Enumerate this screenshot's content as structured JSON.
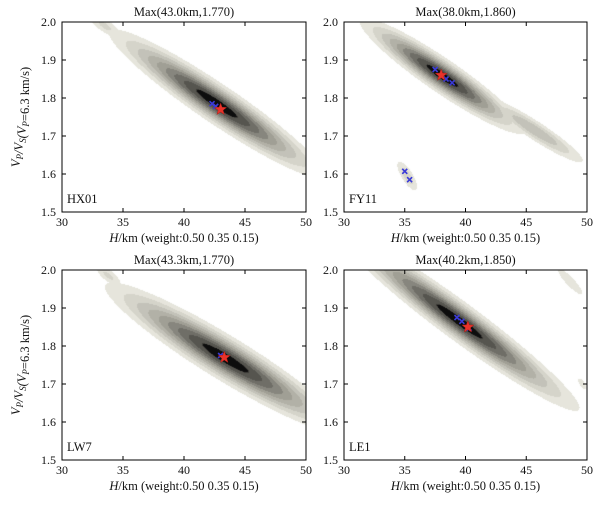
{
  "figure": {
    "ylabel_main": "V",
    "ylabel_sub_p": "P",
    "ylabel_sep": "/V",
    "ylabel_sub_s": "S",
    "ylabel_paren_open": "(V",
    "ylabel_sub_p2": "P",
    "ylabel_tail": "=6.3 km/s)",
    "xlabel_italic": "H",
    "xlabel_rest": "/km (weight:0.50 0.35 0.15)"
  },
  "colors": {
    "contour_outer": "#e6e5dc",
    "contour_mid": "#a09f95",
    "contour_inner": "#3d3c38",
    "peak": "#0d0d0d",
    "star": "#e8332a",
    "blue_trace": "#3a3ad8"
  },
  "chart_data": [
    {
      "type": "contour",
      "station": "HX01",
      "title": "Max(43.0km,1.770)",
      "max_H_km": 43.0,
      "max_ratio": 1.77,
      "xlim": [
        30,
        50
      ],
      "ylim": [
        1.5,
        2.0
      ],
      "xticks": [
        30,
        35,
        40,
        45,
        50
      ],
      "yticks": [
        1.5,
        1.6,
        1.7,
        1.8,
        1.9,
        2.0
      ],
      "blobs": [
        {
          "cx": 42.7,
          "cy": 1.785,
          "sx": 4.3,
          "sy": 0.03,
          "slope": -0.021,
          "amp": 1.0
        },
        {
          "cx": 33.5,
          "cy": 1.99,
          "sx": 1.0,
          "sy": 0.015,
          "slope": -0.018,
          "amp": 0.25
        }
      ],
      "blue_points": [
        [
          42.3,
          1.785
        ],
        [
          42.6,
          1.778
        ]
      ]
    },
    {
      "type": "contour",
      "station": "FY11",
      "title": "Max(38.0km,1.860)",
      "max_H_km": 38.0,
      "max_ratio": 1.86,
      "xlim": [
        30,
        50
      ],
      "ylim": [
        1.5,
        2.0
      ],
      "xticks": [
        30,
        35,
        40,
        45,
        50
      ],
      "yticks": [
        1.5,
        1.6,
        1.7,
        1.8,
        1.9,
        2.0
      ],
      "blobs": [
        {
          "cx": 38.1,
          "cy": 1.858,
          "sx": 3.3,
          "sy": 0.026,
          "slope": -0.021,
          "amp": 1.0
        },
        {
          "cx": 45.7,
          "cy": 1.715,
          "sx": 2.5,
          "sy": 0.018,
          "slope": -0.02,
          "amp": 0.42
        },
        {
          "cx": 35.2,
          "cy": 1.595,
          "sx": 0.6,
          "sy": 0.018,
          "slope": -0.035,
          "amp": 0.3
        },
        {
          "cx": 32.5,
          "cy": 1.99,
          "sx": 0.7,
          "sy": 0.012,
          "slope": -0.02,
          "amp": 0.2
        }
      ],
      "blue_points": [
        [
          37.5,
          1.875
        ],
        [
          38.4,
          1.85
        ],
        [
          38.9,
          1.84
        ],
        [
          35.0,
          1.607
        ],
        [
          35.4,
          1.585
        ]
      ]
    },
    {
      "type": "contour",
      "station": "LW7",
      "title": "Max(43.3km,1.770)",
      "max_H_km": 43.3,
      "max_ratio": 1.77,
      "xlim": [
        30,
        50
      ],
      "ylim": [
        1.5,
        2.0
      ],
      "xticks": [
        30,
        35,
        40,
        45,
        50
      ],
      "yticks": [
        1.5,
        1.6,
        1.7,
        1.8,
        1.9,
        2.0
      ],
      "blobs": [
        {
          "cx": 43.4,
          "cy": 1.768,
          "sx": 4.8,
          "sy": 0.033,
          "slope": -0.019,
          "amp": 1.0
        },
        {
          "cx": 33.8,
          "cy": 1.985,
          "sx": 0.8,
          "sy": 0.014,
          "slope": -0.02,
          "amp": 0.25
        }
      ],
      "blue_points": [
        [
          43.0,
          1.775
        ]
      ]
    },
    {
      "type": "contour",
      "station": "LE1",
      "title": "Max(40.2km,1.850)",
      "max_H_km": 40.2,
      "max_ratio": 1.85,
      "xlim": [
        30,
        50
      ],
      "ylim": [
        1.5,
        2.0
      ],
      "xticks": [
        30,
        35,
        40,
        45,
        50
      ],
      "yticks": [
        1.5,
        1.6,
        1.7,
        1.8,
        1.9,
        2.0
      ],
      "blobs": [
        {
          "cx": 39.5,
          "cy": 1.865,
          "sx": 4.8,
          "sy": 0.03,
          "slope": -0.023,
          "amp": 1.0
        },
        {
          "cx": 48.6,
          "cy": 1.97,
          "sx": 0.9,
          "sy": 0.014,
          "slope": -0.03,
          "amp": 0.22
        },
        {
          "cx": 49.6,
          "cy": 1.7,
          "sx": 0.35,
          "sy": 0.012,
          "slope": -0.03,
          "amp": 0.18
        }
      ],
      "blue_points": [
        [
          39.3,
          1.875
        ],
        [
          39.7,
          1.865
        ],
        [
          40.3,
          1.847
        ]
      ]
    }
  ]
}
